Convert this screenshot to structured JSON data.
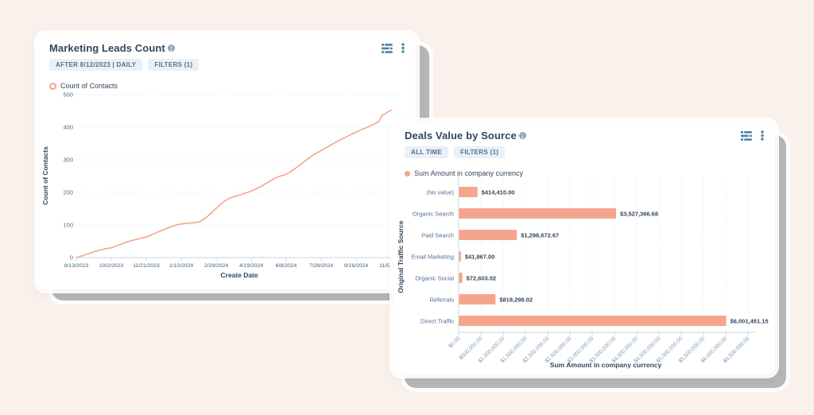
{
  "page": {
    "background": "#fbf1ec"
  },
  "colors": {
    "accent": "#f5a58c",
    "navy": "#33475b",
    "label_blue": "#516f90",
    "tick_light": "#7c98b6",
    "grid": "#dde5ee",
    "axis": "#cbd6e2",
    "badge_bg": "#eaf0f6",
    "icon_blue": "#4a81a8",
    "card_backing": "#b6b6b8"
  },
  "icons": {
    "left_card": [
      "info-icon",
      "chart-settings-icon",
      "kebab-menu-icon"
    ],
    "right_card": [
      "info-icon",
      "chart-settings-icon",
      "kebab-menu-icon"
    ]
  },
  "cards": {
    "left": {
      "title": "Marketing Leads Count",
      "badges": [
        "AFTER 8/12/2023 | DAILY",
        "FILTERS (1)"
      ],
      "legend": "Count of Contacts"
    },
    "right": {
      "title": "Deals Value by Source",
      "badges": [
        "ALL TIME",
        "FILTERS (1)"
      ],
      "legend": "Sum Amount in company currency"
    }
  },
  "chart_data": [
    {
      "type": "line",
      "title": "Marketing Leads Count",
      "xlabel": "Create Date",
      "ylabel": "Count of Contacts",
      "legend": [
        "Count of Contacts"
      ],
      "y_ticks": [
        0,
        100,
        200,
        300,
        400,
        500
      ],
      "ylim": [
        0,
        500
      ],
      "grid": "horizontal-dotted",
      "x_tick_days": [
        0,
        50,
        100,
        150,
        200,
        250,
        300,
        350,
        400,
        450
      ],
      "x_tick_labels": [
        "8/13/2023",
        "10/2/2023",
        "11/21/2023",
        "1/10/2024",
        "2/29/2024",
        "4/19/2024",
        "6/8/2024",
        "7/28/2024",
        "9/16/2024",
        "11/5/2024"
      ],
      "xlim_days": [
        0,
        465
      ],
      "series": [
        {
          "name": "Count of Contacts",
          "points": [
            [
              0,
              0
            ],
            [
              8,
              5
            ],
            [
              16,
              11
            ],
            [
              24,
              17
            ],
            [
              32,
              22
            ],
            [
              40,
              26
            ],
            [
              50,
              30
            ],
            [
              58,
              36
            ],
            [
              66,
              43
            ],
            [
              74,
              49
            ],
            [
              82,
              54
            ],
            [
              90,
              58
            ],
            [
              100,
              63
            ],
            [
              108,
              70
            ],
            [
              116,
              78
            ],
            [
              124,
              85
            ],
            [
              132,
              92
            ],
            [
              140,
              98
            ],
            [
              146,
              102
            ],
            [
              152,
              104
            ],
            [
              158,
              105
            ],
            [
              164,
              106
            ],
            [
              170,
              107
            ],
            [
              176,
              110
            ],
            [
              182,
              117
            ],
            [
              188,
              127
            ],
            [
              194,
              139
            ],
            [
              200,
              151
            ],
            [
              206,
              163
            ],
            [
              212,
              174
            ],
            [
              218,
              181
            ],
            [
              224,
              186
            ],
            [
              230,
              190
            ],
            [
              238,
              195
            ],
            [
              246,
              201
            ],
            [
              252,
              206
            ],
            [
              258,
              212
            ],
            [
              266,
              221
            ],
            [
              274,
              231
            ],
            [
              282,
              241
            ],
            [
              290,
              249
            ],
            [
              298,
              254
            ],
            [
              306,
              263
            ],
            [
              314,
              275
            ],
            [
              322,
              288
            ],
            [
              330,
              301
            ],
            [
              336,
              311
            ],
            [
              342,
              319
            ],
            [
              350,
              328
            ],
            [
              358,
              338
            ],
            [
              366,
              348
            ],
            [
              374,
              357
            ],
            [
              382,
              366
            ],
            [
              390,
              375
            ],
            [
              398,
              383
            ],
            [
              406,
              391
            ],
            [
              414,
              398
            ],
            [
              420,
              404
            ],
            [
              426,
              410
            ],
            [
              430,
              414
            ],
            [
              433,
              419
            ],
            [
              435,
              428
            ],
            [
              437,
              436
            ],
            [
              440,
              440
            ],
            [
              443,
              443
            ],
            [
              446,
              448
            ],
            [
              449,
              451
            ],
            [
              451,
              453
            ]
          ]
        }
      ]
    },
    {
      "type": "bar",
      "orientation": "horizontal",
      "title": "Deals Value by Source",
      "xlabel": "Sum Amount in company currency",
      "ylabel": "Original Traffic Source",
      "legend": [
        "Sum Amount in company currency"
      ],
      "categories": [
        "(No value)",
        "Organic Search",
        "Paid Search",
        "Email Marketing",
        "Organic Social",
        "Referrals",
        "Direct Traffic"
      ],
      "values": [
        414410.0,
        3527366.68,
        1298672.67,
        41867.0,
        72603.02,
        818298.02,
        6001451.15
      ],
      "value_labels": [
        "$414,410.00",
        "$3,527,366.68",
        "$1,298,672.67",
        "$41,867.00",
        "$72,603.02",
        "$818,298.02",
        "$6,001,451.15"
      ],
      "x_ticks": [
        0,
        500000,
        1000000,
        1500000,
        2000000,
        2500000,
        3000000,
        3500000,
        4000000,
        4500000,
        5000000,
        5500000,
        6000000,
        6500000
      ],
      "x_tick_labels": [
        "$0.00",
        "$500,000.00",
        "$1,000,000.00",
        "$1,500,000.00",
        "$2,000,000.00",
        "$2,500,000.00",
        "$3,000,000.00",
        "$3,500,000.00",
        "$4,000,000.00",
        "$4,500,000.00",
        "$5,000,000.00",
        "$5,500,000.00",
        "$6,000,000.00",
        "$6,500,000.00"
      ],
      "xlim": [
        0,
        6500000
      ],
      "grid": "vertical-dotted"
    }
  ]
}
